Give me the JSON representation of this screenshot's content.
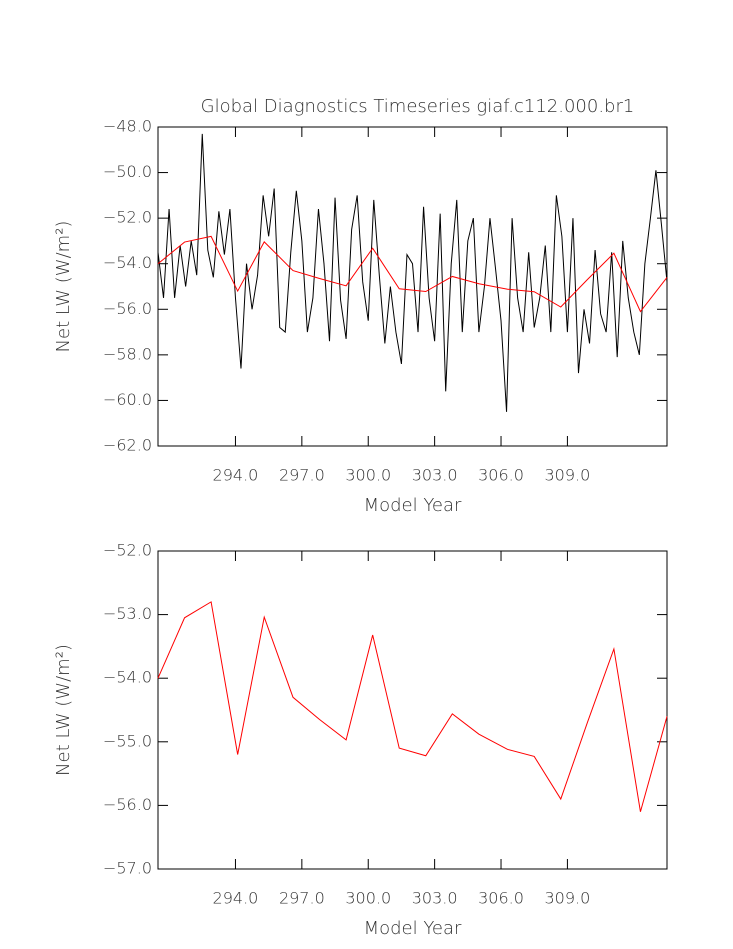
{
  "chart_data": [
    {
      "type": "line",
      "title": "Global Diagnostics Timeseries giaf.c112.000.br1",
      "xlabel": "Model Year",
      "ylabel": "Net LW (W/m²)",
      "xlim": [
        290.5,
        313.5
      ],
      "ylim": [
        -62,
        -48
      ],
      "xticks": [
        {
          "value": 294,
          "label": "294.0"
        },
        {
          "value": 297,
          "label": "297.0"
        },
        {
          "value": 300,
          "label": "300.0"
        },
        {
          "value": 303,
          "label": "303.0"
        },
        {
          "value": 306,
          "label": "306.0"
        },
        {
          "value": 309,
          "label": "309.0"
        }
      ],
      "yticks": [
        {
          "value": -48,
          "label": "−48.0"
        },
        {
          "value": -50,
          "label": "−50.0"
        },
        {
          "value": -52,
          "label": "−52.0"
        },
        {
          "value": -54,
          "label": "−54.0"
        },
        {
          "value": -56,
          "label": "−56.0"
        },
        {
          "value": -58,
          "label": "−58.0"
        },
        {
          "value": -60,
          "label": "−60.0"
        },
        {
          "value": -62,
          "label": "−62.0"
        }
      ],
      "series": [
        {
          "color": "#000000",
          "x": [
            290.5,
            290.75,
            291,
            291.25,
            291.5,
            291.75,
            292,
            292.25,
            292.5,
            292.75,
            293,
            293.25,
            293.5,
            293.75,
            294,
            294.25,
            294.5,
            294.75,
            295,
            295.25,
            295.5,
            295.75,
            296,
            296.25,
            296.5,
            296.75,
            297,
            297.25,
            297.5,
            297.75,
            298,
            298.25,
            298.5,
            298.75,
            299,
            299.25,
            299.5,
            299.75,
            300,
            300.25,
            300.5,
            300.75,
            301,
            301.25,
            301.5,
            301.75,
            302,
            302.25,
            302.5,
            302.75,
            303,
            303.25,
            303.5,
            303.75,
            304,
            304.25,
            304.5,
            304.75,
            305,
            305.25,
            305.5,
            305.75,
            306,
            306.25,
            306.5,
            306.75,
            307,
            307.25,
            307.5,
            307.75,
            308,
            308.25,
            308.5,
            308.75,
            309,
            309.25,
            309.5,
            309.75,
            310,
            310.25,
            310.5,
            310.75,
            311,
            311.25,
            311.5,
            311.75,
            312,
            312.25,
            312.5,
            312.75,
            313,
            313.25,
            313.5
          ],
          "values": [
            -53.5,
            -55.5,
            -51.6,
            -55.5,
            -53.2,
            -55.0,
            -53.0,
            -54.5,
            -48.3,
            -53.4,
            -54.6,
            -51.7,
            -53.6,
            -51.6,
            -55.5,
            -58.6,
            -54.0,
            -56.0,
            -54.5,
            -51.0,
            -52.8,
            -50.7,
            -56.8,
            -57.0,
            -53.5,
            -50.8,
            -53.0,
            -57.0,
            -55.5,
            -51.6,
            -54.0,
            -57.4,
            -51.1,
            -55.6,
            -57.3,
            -52.5,
            -51.0,
            -54.8,
            -56.5,
            -51.2,
            -54.5,
            -57.5,
            -55.0,
            -57.0,
            -58.4,
            -53.6,
            -54.0,
            -57.0,
            -51.5,
            -55.5,
            -57.4,
            -51.8,
            -59.6,
            -54.0,
            -51.2,
            -57.0,
            -53.0,
            -52.0,
            -57.0,
            -55.0,
            -52.0,
            -54.2,
            -56.5,
            -60.5,
            -52.0,
            -55.5,
            -57.0,
            -53.5,
            -56.8,
            -55.5,
            -53.2,
            -57.0,
            -51.0,
            -52.8,
            -57.0,
            -52.0,
            -58.8,
            -56.0,
            -57.5,
            -53.4,
            -56.2,
            -57.0,
            -53.5,
            -58.1,
            -53.0,
            -55.5,
            -57.0,
            -58.0,
            -54.0,
            -52.0,
            -49.9,
            -52.3,
            -54.8
          ]
        },
        {
          "color": "#ff0000",
          "x": [
            290.5,
            291.7,
            292.9,
            294.1,
            295.3,
            296.6,
            297.8,
            299.0,
            300.2,
            301.4,
            302.6,
            303.8,
            305.0,
            306.3,
            307.5,
            308.7,
            309.9,
            311.1,
            312.3,
            313.5
          ],
          "values": [
            -54.0,
            -53.05,
            -52.8,
            -55.2,
            -53.04,
            -54.3,
            -54.65,
            -54.97,
            -53.32,
            -55.1,
            -55.22,
            -54.56,
            -54.88,
            -55.12,
            -55.23,
            -55.9,
            -54.7,
            -53.54,
            -56.1,
            -54.6
          ]
        }
      ]
    },
    {
      "type": "line",
      "xlabel": "Model Year",
      "ylabel": "Net LW (W/m²)",
      "xlim": [
        290.5,
        313.5
      ],
      "ylim": [
        -57,
        -52
      ],
      "xticks": [
        {
          "value": 294,
          "label": "294.0"
        },
        {
          "value": 297,
          "label": "297.0"
        },
        {
          "value": 300,
          "label": "300.0"
        },
        {
          "value": 303,
          "label": "303.0"
        },
        {
          "value": 306,
          "label": "306.0"
        },
        {
          "value": 309,
          "label": "309.0"
        }
      ],
      "yticks": [
        {
          "value": -52,
          "label": "−52.0"
        },
        {
          "value": -53,
          "label": "−53.0"
        },
        {
          "value": -54,
          "label": "−54.0"
        },
        {
          "value": -55,
          "label": "−55.0"
        },
        {
          "value": -56,
          "label": "−56.0"
        },
        {
          "value": -57,
          "label": "−57.0"
        }
      ],
      "series": [
        {
          "color": "#ff0000",
          "x": [
            290.5,
            291.7,
            292.9,
            294.1,
            295.3,
            296.6,
            297.8,
            299.0,
            300.2,
            301.4,
            302.6,
            303.8,
            305.0,
            306.3,
            307.5,
            308.7,
            309.9,
            311.1,
            312.3,
            313.5
          ],
          "values": [
            -54.0,
            -53.05,
            -52.8,
            -55.2,
            -53.04,
            -54.3,
            -54.65,
            -54.97,
            -53.32,
            -55.1,
            -55.22,
            -54.56,
            -54.88,
            -55.12,
            -55.23,
            -55.9,
            -54.7,
            -53.54,
            -56.1,
            -54.6
          ]
        }
      ]
    }
  ]
}
